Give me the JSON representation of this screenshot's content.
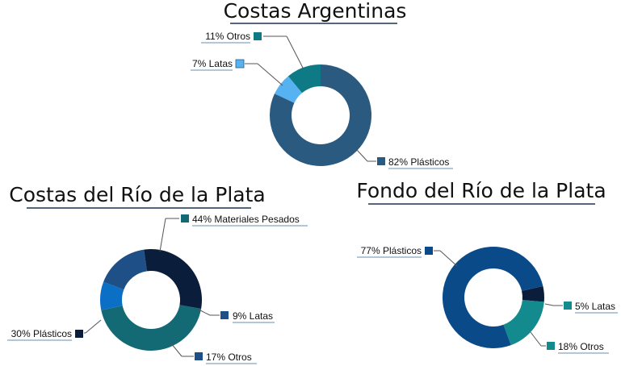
{
  "chart_data": [
    {
      "type": "pie",
      "title": "Costas Argentinas",
      "slices": [
        {
          "label": "Plásticos",
          "value": 82,
          "color": "#2A5A80",
          "display": "82% Plásticos"
        },
        {
          "label": "Latas",
          "value": 7,
          "color": "#57B2F2",
          "display": "7% Latas"
        },
        {
          "label": "Otros",
          "value": 11,
          "color": "#0E7A86",
          "display": "11% Otros"
        }
      ]
    },
    {
      "type": "pie",
      "title": "Costas del Río de la Plata",
      "slices": [
        {
          "label": "Materiales Pesados",
          "value": 44,
          "color": "#136A75",
          "display": "44% Materiales Pesados"
        },
        {
          "label": "Latas",
          "value": 9,
          "color": "#0B6FC6",
          "display": "9% Latas"
        },
        {
          "label": "Otros",
          "value": 17,
          "color": "#1E4F86",
          "display": "17% Otros"
        },
        {
          "label": "Plásticos",
          "value": 30,
          "color": "#0A1E3C",
          "display": "30% Plásticos"
        }
      ]
    },
    {
      "type": "pie",
      "title": "Fondo del Río de la Plata",
      "slices": [
        {
          "label": "Latas",
          "value": 5,
          "color": "#0A1E3C",
          "display": "5% Latas"
        },
        {
          "label": "Otros",
          "value": 18,
          "color": "#138A8E",
          "display": "18% Otros"
        },
        {
          "label": "Plásticos",
          "value": 77,
          "color": "#0B4A88",
          "display": "77% Plásticos"
        }
      ]
    }
  ]
}
